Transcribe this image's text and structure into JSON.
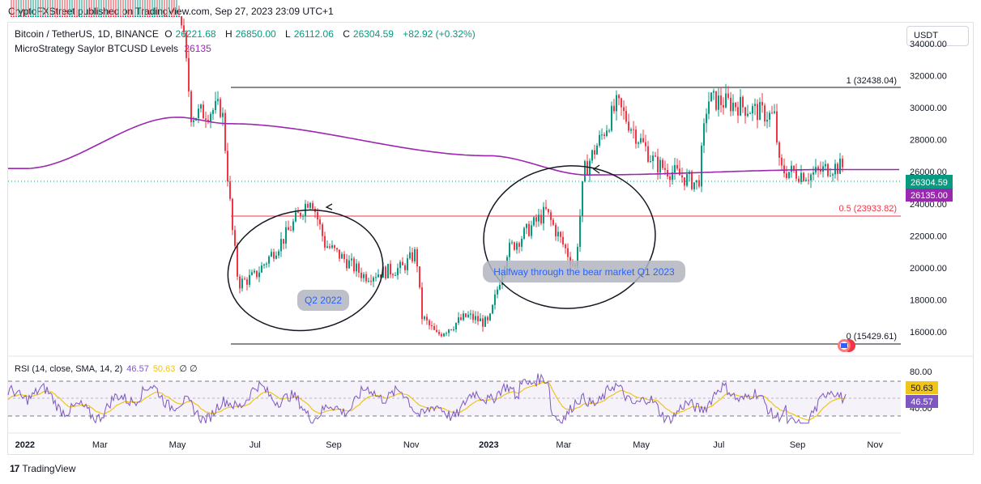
{
  "header": {
    "published": "CryptoFXStreet published on TradingView.com, Sep 27, 2023 23:09 UTC+1"
  },
  "legend": {
    "symbol": "Bitcoin / TetherUS, 1D, BINANCE",
    "o_label": "O",
    "o_value": "26221.68",
    "h_label": "H",
    "h_value": "26850.00",
    "l_label": "L",
    "l_value": "26112.06",
    "c_label": "C",
    "c_value": "26304.59",
    "change": "+82.92 (+0.32%)",
    "indicator_name": "MicroStrategy Saylor BTCUSD Levels",
    "indicator_value": "26135"
  },
  "currency_button": "USDT",
  "footer": {
    "brand": "TradingView",
    "brand_mark": "17"
  },
  "colors": {
    "up": "#089981",
    "down": "#f23645",
    "ma": "#9c27b0",
    "rsi": "#7e57c2",
    "rsi_sma": "#f0c419",
    "fib_mid": "#f23645",
    "fib": "#131722"
  },
  "chart_data": {
    "type": "candlestick",
    "symbol": "BTCUSDT",
    "timeframe": "1D",
    "x_labels": [
      "2022",
      "Mar",
      "May",
      "Jul",
      "Sep",
      "Nov",
      "2023",
      "Mar",
      "May",
      "Jul",
      "Sep",
      "Nov"
    ],
    "y_labels": [
      "34000.00",
      "32000.00",
      "30000.00",
      "28000.00",
      "26000.00",
      "24000.00",
      "22000.00",
      "20000.00",
      "18000.00",
      "16000.00"
    ],
    "ylim": [
      14800,
      35200
    ],
    "last_price": "26304.59",
    "ma_value": "26135.00",
    "series": [
      {
        "name": "Bitcoin / TetherUS",
        "approx_close_path": [
          {
            "x": "2022-01",
            "y": 42000
          },
          {
            "x": "2022-04",
            "y": 40000
          },
          {
            "x": "2022-05-01",
            "y": 38000
          },
          {
            "x": "2022-05-12",
            "y": 29500
          },
          {
            "x": "2022-06-05",
            "y": 30000
          },
          {
            "x": "2022-06-13",
            "y": 22500
          },
          {
            "x": "2022-06-18",
            "y": 19000
          },
          {
            "x": "2022-07-01",
            "y": 19500
          },
          {
            "x": "2022-07-25",
            "y": 22000
          },
          {
            "x": "2022-08-14",
            "y": 24500
          },
          {
            "x": "2022-08-25",
            "y": 21500
          },
          {
            "x": "2022-09-10",
            "y": 20500
          },
          {
            "x": "2022-09-25",
            "y": 19500
          },
          {
            "x": "2022-10-25",
            "y": 20000
          },
          {
            "x": "2022-11-05",
            "y": 21000
          },
          {
            "x": "2022-11-09",
            "y": 17000
          },
          {
            "x": "2022-11-21",
            "y": 15800
          },
          {
            "x": "2022-12-15",
            "y": 17000
          },
          {
            "x": "2023-01-01",
            "y": 16500
          },
          {
            "x": "2023-01-15",
            "y": 21000
          },
          {
            "x": "2023-02-15",
            "y": 23500
          },
          {
            "x": "2023-03-10",
            "y": 20000
          },
          {
            "x": "2023-03-17",
            "y": 26000
          },
          {
            "x": "2023-04-12",
            "y": 30200
          },
          {
            "x": "2023-05-12",
            "y": 26500
          },
          {
            "x": "2023-06-15",
            "y": 25200
          },
          {
            "x": "2023-06-22",
            "y": 30500
          },
          {
            "x": "2023-07-15",
            "y": 30200
          },
          {
            "x": "2023-08-14",
            "y": 29400
          },
          {
            "x": "2023-08-18",
            "y": 26100
          },
          {
            "x": "2023-09-12",
            "y": 25800
          },
          {
            "x": "2023-09-27",
            "y": 26304.59
          }
        ]
      },
      {
        "name": "MicroStrategy Saylor BTCUSD Levels",
        "approx_path": [
          {
            "x": "2022-01",
            "y": 26200
          },
          {
            "x": "2022-05-01",
            "y": 29400
          },
          {
            "x": "2022-06-10",
            "y": 29000
          },
          {
            "x": "2023-01-01",
            "y": 27000
          },
          {
            "x": "2023-03-20",
            "y": 25800
          },
          {
            "x": "2023-09-27",
            "y": 26135
          }
        ]
      }
    ],
    "fib_levels": [
      {
        "label": "1 (32438.04)",
        "ratio": "1",
        "price": 32438.04
      },
      {
        "label": "0.5 (23933.82)",
        "ratio": "0.5",
        "price": 23933.82
      },
      {
        "label": "0 (15429.61)",
        "ratio": "0",
        "price": 15429.61
      }
    ],
    "annotations": [
      {
        "text": "Q2 2022"
      },
      {
        "text": "Halfway through the bear market Q1 2023"
      }
    ],
    "rsi": {
      "title": "RSI (14, close, SMA, 14, 2)",
      "rsi_value": "46.57",
      "sma_value": "50.63",
      "extra": "∅ ∅",
      "y_labels": [
        "80.00",
        "40.00"
      ],
      "ylim": [
        25,
        85
      ],
      "bands": [
        70,
        50,
        30
      ]
    }
  }
}
